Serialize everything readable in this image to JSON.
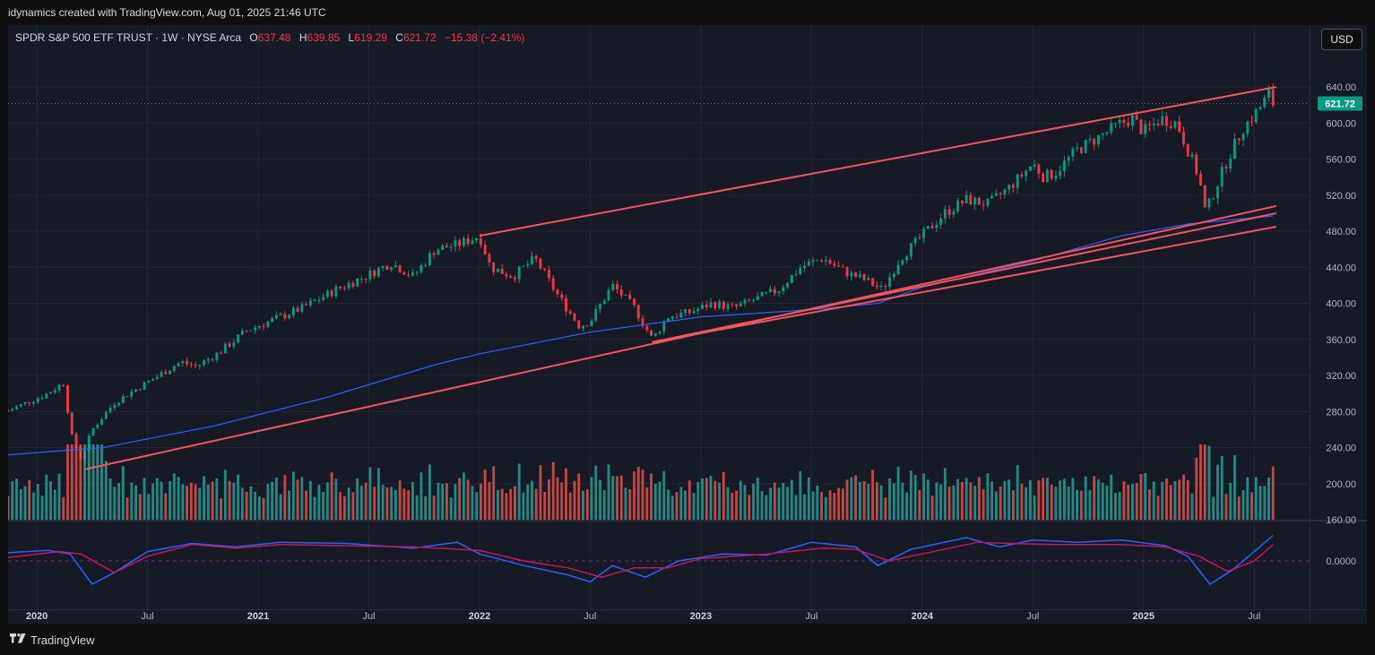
{
  "header": {
    "credit": "idynamics created with TradingView.com, Aug 01, 2025 21:46 UTC"
  },
  "legend": {
    "symbol": "SPDR S&P 500 ETF TRUST · 1W · NYSE Arca",
    "o_label": "O",
    "o_value": "637.48",
    "h_label": "H",
    "h_value": "639.85",
    "l_label": "L",
    "l_value": "619.29",
    "c_label": "C",
    "c_value": "621.72",
    "change": "−15.38 (−2.41%)"
  },
  "currency_button": "USD",
  "footer": {
    "brand": "TradingView"
  },
  "colors": {
    "up": "#26a69a",
    "down": "#ef5350",
    "candle_up": "#089981",
    "candle_down": "#f23645",
    "trendline": "#f7525f",
    "ma": "#2962ff",
    "osc_main": "#2962ff",
    "osc_signal": "#c2185b",
    "last_price_bg": "#089981"
  },
  "chart_data": {
    "type": "candlestick",
    "symbol": "SPY",
    "interval": "1W",
    "last_price_label": "621.72",
    "y_ticks": [
      "640.00",
      "600.00",
      "560.00",
      "520.00",
      "480.00",
      "440.00",
      "400.00",
      "360.00",
      "320.00",
      "280.00",
      "240.00",
      "200.00",
      "160.00"
    ],
    "y_range": [
      160,
      655
    ],
    "x_range": [
      2019.87,
      2025.75
    ],
    "x_ticks": [
      {
        "label": "2020",
        "t": 2020.0
      },
      {
        "label": "Jul",
        "t": 2020.5
      },
      {
        "label": "2021",
        "t": 2021.0
      },
      {
        "label": "Jul",
        "t": 2021.5
      },
      {
        "label": "2022",
        "t": 2022.0
      },
      {
        "label": "Jul",
        "t": 2022.5
      },
      {
        "label": "2023",
        "t": 2023.0
      },
      {
        "label": "Jul",
        "t": 2023.5
      },
      {
        "label": "2024",
        "t": 2024.0
      },
      {
        "label": "Jul",
        "t": 2024.5
      },
      {
        "label": "2025",
        "t": 2025.0
      },
      {
        "label": "Jul",
        "t": 2025.5
      }
    ],
    "price_path": [
      [
        2019.87,
        281
      ],
      [
        2020.05,
        300
      ],
      [
        2020.12,
        312
      ],
      [
        2020.16,
        250
      ],
      [
        2020.2,
        228
      ],
      [
        2020.25,
        260
      ],
      [
        2020.35,
        290
      ],
      [
        2020.45,
        305
      ],
      [
        2020.55,
        320
      ],
      [
        2020.65,
        335
      ],
      [
        2020.72,
        330
      ],
      [
        2020.82,
        345
      ],
      [
        2020.95,
        370
      ],
      [
        2021.05,
        380
      ],
      [
        2021.2,
        395
      ],
      [
        2021.35,
        415
      ],
      [
        2021.5,
        432
      ],
      [
        2021.6,
        445
      ],
      [
        2021.7,
        430
      ],
      [
        2021.8,
        460
      ],
      [
        2021.9,
        465
      ],
      [
        2022.0,
        475
      ],
      [
        2022.05,
        440
      ],
      [
        2022.15,
        430
      ],
      [
        2022.25,
        450
      ],
      [
        2022.35,
        410
      ],
      [
        2022.45,
        375
      ],
      [
        2022.5,
        380
      ],
      [
        2022.6,
        420
      ],
      [
        2022.7,
        395
      ],
      [
        2022.78,
        360
      ],
      [
        2022.85,
        385
      ],
      [
        2022.95,
        390
      ],
      [
        2023.05,
        400
      ],
      [
        2023.15,
        395
      ],
      [
        2023.25,
        405
      ],
      [
        2023.35,
        415
      ],
      [
        2023.45,
        440
      ],
      [
        2023.55,
        450
      ],
      [
        2023.65,
        435
      ],
      [
        2023.75,
        425
      ],
      [
        2023.82,
        415
      ],
      [
        2023.9,
        450
      ],
      [
        2024.0,
        475
      ],
      [
        2024.1,
        500
      ],
      [
        2024.2,
        515
      ],
      [
        2024.3,
        510
      ],
      [
        2024.4,
        530
      ],
      [
        2024.5,
        555
      ],
      [
        2024.55,
        540
      ],
      [
        2024.6,
        545
      ],
      [
        2024.7,
        570
      ],
      [
        2024.8,
        585
      ],
      [
        2024.9,
        600
      ],
      [
        2024.95,
        605
      ],
      [
        2025.0,
        590
      ],
      [
        2025.08,
        605
      ],
      [
        2025.15,
        600
      ],
      [
        2025.2,
        570
      ],
      [
        2025.25,
        540
      ],
      [
        2025.28,
        500
      ],
      [
        2025.32,
        525
      ],
      [
        2025.38,
        560
      ],
      [
        2025.45,
        595
      ],
      [
        2025.52,
        615
      ],
      [
        2025.58,
        637
      ],
      [
        2025.585,
        622
      ]
    ],
    "moving_average": [
      [
        2019.87,
        232
      ],
      [
        2020.3,
        240
      ],
      [
        2020.8,
        264
      ],
      [
        2021.3,
        295
      ],
      [
        2021.8,
        332
      ],
      [
        2022.0,
        344
      ],
      [
        2022.5,
        368
      ],
      [
        2023.0,
        385
      ],
      [
        2023.5,
        393
      ],
      [
        2023.8,
        400
      ],
      [
        2024.0,
        418
      ],
      [
        2024.5,
        447
      ],
      [
        2024.9,
        475
      ],
      [
        2025.2,
        488
      ],
      [
        2025.585,
        497
      ]
    ],
    "trendlines": [
      {
        "from": [
          2022.0,
          475
        ],
        "to": [
          2025.6,
          640
        ]
      },
      {
        "from": [
          2020.22,
          216
        ],
        "to": [
          2025.6,
          508
        ]
      },
      {
        "from": [
          2022.78,
          357
        ],
        "to": [
          2025.6,
          485
        ]
      },
      {
        "from": [
          2022.78,
          357
        ],
        "to": [
          2025.6,
          500
        ]
      }
    ],
    "volume_ticks_shown_on_price_axis": true,
    "oscillator": {
      "zero_label": "0.0000",
      "main": [
        [
          2019.87,
          0.35
        ],
        [
          2020.05,
          0.45
        ],
        [
          2020.15,
          0.3
        ],
        [
          2020.25,
          -1.0
        ],
        [
          2020.35,
          -0.5
        ],
        [
          2020.5,
          0.4
        ],
        [
          2020.7,
          0.75
        ],
        [
          2020.9,
          0.6
        ],
        [
          2021.1,
          0.8
        ],
        [
          2021.4,
          0.75
        ],
        [
          2021.7,
          0.55
        ],
        [
          2021.9,
          0.8
        ],
        [
          2022.0,
          0.3
        ],
        [
          2022.2,
          -0.2
        ],
        [
          2022.4,
          -0.6
        ],
        [
          2022.5,
          -0.9
        ],
        [
          2022.6,
          -0.2
        ],
        [
          2022.75,
          -0.7
        ],
        [
          2022.9,
          0.0
        ],
        [
          2023.1,
          0.3
        ],
        [
          2023.3,
          0.25
        ],
        [
          2023.5,
          0.8
        ],
        [
          2023.7,
          0.6
        ],
        [
          2023.8,
          -0.2
        ],
        [
          2023.95,
          0.5
        ],
        [
          2024.2,
          1.0
        ],
        [
          2024.35,
          0.6
        ],
        [
          2024.5,
          0.9
        ],
        [
          2024.7,
          0.8
        ],
        [
          2024.9,
          0.9
        ],
        [
          2025.1,
          0.65
        ],
        [
          2025.2,
          0.2
        ],
        [
          2025.3,
          -1.0
        ],
        [
          2025.4,
          -0.4
        ],
        [
          2025.5,
          0.4
        ],
        [
          2025.585,
          1.1
        ]
      ],
      "signal": [
        [
          2019.87,
          0.15
        ],
        [
          2020.1,
          0.4
        ],
        [
          2020.2,
          0.3
        ],
        [
          2020.35,
          -0.5
        ],
        [
          2020.5,
          0.2
        ],
        [
          2020.7,
          0.7
        ],
        [
          2020.9,
          0.55
        ],
        [
          2021.1,
          0.7
        ],
        [
          2021.4,
          0.65
        ],
        [
          2021.7,
          0.6
        ],
        [
          2021.9,
          0.5
        ],
        [
          2022.0,
          0.45
        ],
        [
          2022.2,
          0.0
        ],
        [
          2022.4,
          -0.3
        ],
        [
          2022.55,
          -0.7
        ],
        [
          2022.7,
          -0.3
        ],
        [
          2022.85,
          -0.3
        ],
        [
          2023.0,
          0.1
        ],
        [
          2023.3,
          0.3
        ],
        [
          2023.55,
          0.55
        ],
        [
          2023.7,
          0.5
        ],
        [
          2023.85,
          0.0
        ],
        [
          2024.0,
          0.3
        ],
        [
          2024.25,
          0.8
        ],
        [
          2024.4,
          0.75
        ],
        [
          2024.6,
          0.7
        ],
        [
          2024.9,
          0.7
        ],
        [
          2025.1,
          0.6
        ],
        [
          2025.25,
          0.2
        ],
        [
          2025.38,
          -0.45
        ],
        [
          2025.5,
          0.0
        ],
        [
          2025.585,
          0.7
        ]
      ]
    }
  }
}
